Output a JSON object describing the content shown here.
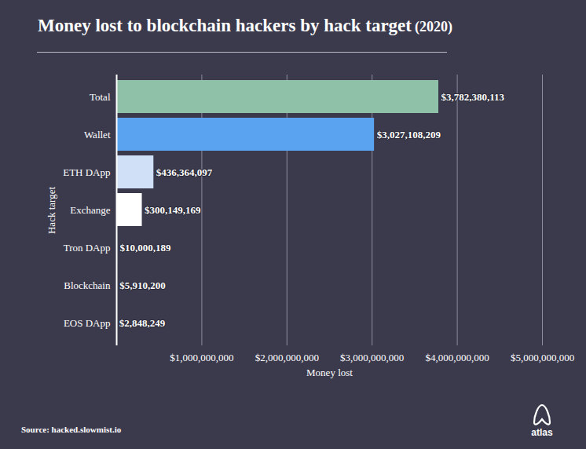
{
  "chart_data": {
    "type": "bar",
    "orientation": "horizontal",
    "title": "Money lost to blockchain hackers by hack target",
    "subtitle": "(2020)",
    "xlabel": "Money lost",
    "ylabel": "Hack target",
    "categories": [
      "Total",
      "Wallet",
      "ETH DApp",
      "Exchange",
      "Tron DApp",
      "Blockchain",
      "EOS DApp"
    ],
    "values": [
      3782380113,
      3027108209,
      436364097,
      300149169,
      10000189,
      5910200,
      2848249
    ],
    "value_labels": [
      "$3,782,380,113",
      "$3,027,108,209",
      "$436,364,097",
      "$300,149,169",
      "$10,000,189",
      "$5,910,200",
      "$2,848,249"
    ],
    "colors": [
      "#8fc1a9",
      "#5aa3f0",
      "#cfe0f7",
      "#ffffff",
      "#8fc1a9",
      "#ffffff",
      "#ffffff"
    ],
    "data_labels": true,
    "grid": true,
    "xlim": [
      0,
      5000000000
    ],
    "xticks": [
      {
        "value": 1000000000,
        "label": "$1,000,000,000"
      },
      {
        "value": 2000000000,
        "label": "$2,000,000,000"
      },
      {
        "value": 3000000000,
        "label": "$3,000,000,000"
      },
      {
        "value": 4000000000,
        "label": "$4,000,000,000"
      },
      {
        "value": 5000000000,
        "label": "$5,000,000,000"
      }
    ],
    "source": "Source: hacked.slowmist.io",
    "brand": "atlas"
  }
}
